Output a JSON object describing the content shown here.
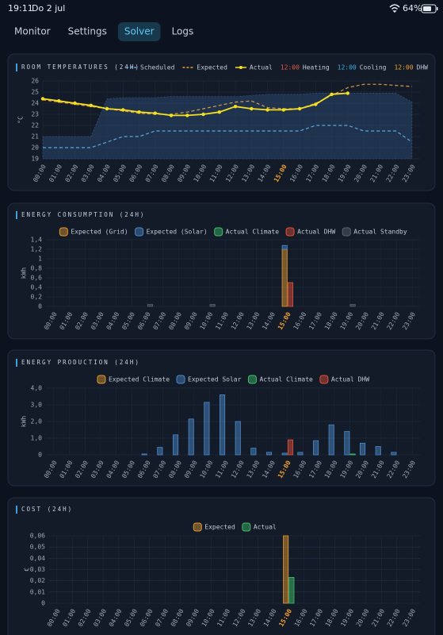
{
  "status_bar": {
    "time": "19:11",
    "date": "Do 2 jul",
    "battery": "64%"
  },
  "tabs": {
    "items": [
      "Monitor",
      "Settings",
      "Solver",
      "Logs"
    ],
    "active": 2
  },
  "chart_data": [
    {
      "type": "line",
      "title": "ROOM TEMPERATURES (24H)",
      "y_label": "°C",
      "categories": [
        "00:00",
        "01:00",
        "02:00",
        "03:00",
        "04:00",
        "05:00",
        "06:00",
        "07:00",
        "08:00",
        "09:00",
        "10:00",
        "11:00",
        "12:00",
        "13:00",
        "14:00",
        "15:00",
        "16:00",
        "17:00",
        "18:00",
        "19:00",
        "20:00",
        "21:00",
        "22:00",
        "23:00"
      ],
      "highlight_index": 15,
      "highlight_color": "#f0a030",
      "ylim": [
        19,
        26
      ],
      "yticks": [
        19,
        20,
        21,
        22,
        23,
        24,
        25,
        26
      ],
      "grid": true,
      "band": {
        "color": "#29476f",
        "upper": [
          21,
          21,
          21,
          21,
          24.4,
          24.5,
          24.5,
          24.5,
          24.6,
          24.6,
          24.6,
          24.6,
          24.6,
          24.7,
          24.8,
          24.8,
          24.8,
          24.9,
          24.9,
          24.9,
          24.9,
          24.9,
          24.9,
          24.1
        ],
        "lower": [
          19,
          19,
          19,
          19,
          19,
          19,
          19,
          19,
          19,
          19,
          19,
          19,
          19,
          19,
          19,
          19,
          19,
          19,
          19,
          19,
          19,
          19,
          19,
          19
        ]
      },
      "series": [
        {
          "name": "Scheduled",
          "color": "#5aa8e0",
          "style": "dashed",
          "values": [
            20,
            20,
            20,
            20,
            20.5,
            21,
            21,
            21.5,
            21.5,
            21.5,
            21.5,
            21.5,
            21.5,
            21.5,
            21.5,
            21.5,
            21.5,
            22,
            22,
            22,
            21.5,
            21.5,
            21.5,
            20.5
          ]
        },
        {
          "name": "Expected",
          "color": "#e09a40",
          "style": "dashed",
          "values": [
            24.3,
            24.1,
            23.9,
            23.7,
            23.5,
            23.3,
            23.1,
            23,
            23,
            23.2,
            23.5,
            23.8,
            24.1,
            24.2,
            23.6,
            23.5,
            23.5,
            24,
            24.7,
            25.4,
            25.7,
            25.7,
            25.6,
            25.5
          ]
        },
        {
          "name": "Actual",
          "color": "#f5e020",
          "style": "solid",
          "markers": true,
          "values": [
            24.4,
            24.2,
            24,
            23.8,
            23.5,
            23.4,
            23.2,
            23.1,
            22.9,
            22.9,
            23,
            23.2,
            23.7,
            23.5,
            23.4,
            23.4,
            23.5,
            23.9,
            24.8,
            24.9,
            null,
            null,
            null,
            null
          ]
        }
      ],
      "legend_extra": [
        {
          "time": "12:00",
          "label": "Heating",
          "color": "#e85a48"
        },
        {
          "time": "12:00",
          "label": "Cooling",
          "color": "#3ab0e0"
        },
        {
          "time": "12:00",
          "label": "DHW",
          "color": "#f0a030"
        }
      ]
    },
    {
      "type": "bar",
      "title": "ENERGY CONSUMPTION (24H)",
      "y_label": "kWh",
      "categories": [
        "00:00",
        "01:00",
        "02:00",
        "03:00",
        "04:00",
        "05:00",
        "06:00",
        "07:00",
        "08:00",
        "09:00",
        "10:00",
        "11:00",
        "12:00",
        "13:00",
        "14:00",
        "15:00",
        "16:00",
        "17:00",
        "18:00",
        "19:00",
        "20:00",
        "21:00",
        "22:00",
        "23:00"
      ],
      "highlight_index": 15,
      "highlight_color": "#f0a030",
      "ylim": [
        0,
        1.4
      ],
      "yticks": [
        0,
        {
          "value": 0.2,
          "label": "0,2"
        },
        {
          "value": 0.4,
          "label": "0,4"
        },
        {
          "value": 0.6,
          "label": "0,6"
        },
        {
          "value": 0.8,
          "label": "0,8"
        },
        {
          "value": 1,
          "label": "1"
        },
        {
          "value": 1.2,
          "label": "1,2"
        },
        {
          "value": 1.4,
          "label": "1,4"
        }
      ],
      "grid": true,
      "series": [
        {
          "name": "Expected (Grid)",
          "color": "#e0982f",
          "stack": "expected",
          "values": [
            0,
            0,
            0,
            0,
            0,
            0,
            0,
            0,
            0,
            0,
            0,
            0,
            0,
            0,
            0,
            1.2,
            0,
            0,
            0,
            0,
            0,
            0,
            0,
            0
          ]
        },
        {
          "name": "Expected (Solar)",
          "color": "#4a88c8",
          "stack": "expected",
          "values": [
            0,
            0,
            0,
            0,
            0,
            0,
            0,
            0,
            0,
            0,
            0,
            0,
            0,
            0,
            0,
            0.08,
            0,
            0,
            0,
            0,
            0,
            0,
            0,
            0
          ]
        },
        {
          "name": "Actual Climate",
          "color": "#3fbf6a",
          "stack": "actual",
          "values": [
            0,
            0,
            0,
            0,
            0,
            0,
            0,
            0,
            0,
            0,
            0,
            0,
            0,
            0,
            0,
            0,
            0,
            0,
            0,
            0,
            0,
            0,
            0,
            0
          ]
        },
        {
          "name": "Actual DHW",
          "color": "#e0503a",
          "stack": "actual",
          "values": [
            0,
            0,
            0,
            0,
            0,
            0,
            0,
            0,
            0,
            0,
            0,
            0,
            0,
            0,
            0,
            0.5,
            0,
            0,
            0,
            0,
            0,
            0,
            0,
            0
          ]
        },
        {
          "name": "Actual Standby",
          "color": "#5a6270",
          "stack": "actual",
          "values": [
            0,
            0,
            0,
            0,
            0,
            0,
            0.04,
            0,
            0,
            0,
            0.04,
            0,
            0,
            0,
            0,
            0,
            0,
            0,
            0,
            0.04,
            0,
            0,
            0,
            0
          ]
        }
      ]
    },
    {
      "type": "bar",
      "title": "ENERGY PRODUCTION (24H)",
      "y_label": "kWh",
      "categories": [
        "00:00",
        "01:00",
        "02:00",
        "03:00",
        "04:00",
        "05:00",
        "06:00",
        "07:00",
        "08:00",
        "09:00",
        "10:00",
        "11:00",
        "12:00",
        "13:00",
        "14:00",
        "15:00",
        "16:00",
        "17:00",
        "18:00",
        "19:00",
        "20:00",
        "21:00",
        "22:00",
        "23:00"
      ],
      "highlight_index": 15,
      "highlight_color": "#f0a030",
      "ylim": [
        0,
        4
      ],
      "yticks": [
        0,
        {
          "value": 1,
          "label": "1,0"
        },
        {
          "value": 2,
          "label": "2,0"
        },
        {
          "value": 3,
          "label": "3,0"
        },
        {
          "value": 4,
          "label": "4,0"
        }
      ],
      "grid": true,
      "series": [
        {
          "name": "Expected Climate",
          "color": "#e0982f",
          "stack": "expected",
          "values": [
            0,
            0,
            0,
            0,
            0,
            0,
            0,
            0,
            0,
            0,
            0,
            0,
            0,
            0,
            0,
            0,
            0,
            0,
            0,
            0,
            0,
            0,
            0,
            0
          ]
        },
        {
          "name": "Expected Solar",
          "color": "#4a88c8",
          "stack": "expected",
          "values": [
            0,
            0,
            0,
            0,
            0,
            0,
            0.05,
            0.45,
            1.2,
            2.15,
            3.15,
            3.6,
            2,
            0.4,
            0.15,
            0.1,
            0.15,
            0.85,
            1.8,
            1.4,
            0.7,
            0.5,
            0.15,
            0
          ]
        },
        {
          "name": "Actual Climate",
          "color": "#3fbf6a",
          "stack": "actual",
          "values": [
            0,
            0,
            0,
            0,
            0,
            0,
            0,
            0,
            0,
            0,
            0,
            0,
            0,
            0,
            0,
            0,
            0,
            0,
            0,
            0.05,
            0,
            0,
            0,
            0
          ]
        },
        {
          "name": "Actual DHW",
          "color": "#e0503a",
          "stack": "actual",
          "values": [
            0,
            0,
            0,
            0,
            0,
            0,
            0,
            0,
            0,
            0,
            0,
            0,
            0,
            0,
            0,
            0.9,
            0,
            0,
            0,
            0,
            0,
            0,
            0,
            0
          ]
        }
      ]
    },
    {
      "type": "bar",
      "title": "COST (24H)",
      "y_label": "€",
      "categories": [
        "00:00",
        "01:00",
        "02:00",
        "03:00",
        "04:00",
        "05:00",
        "06:00",
        "07:00",
        "08:00",
        "09:00",
        "10:00",
        "11:00",
        "12:00",
        "13:00",
        "14:00",
        "15:00",
        "16:00",
        "17:00",
        "18:00",
        "19:00",
        "20:00",
        "21:00",
        "22:00",
        "23:00"
      ],
      "highlight_index": 15,
      "highlight_color": "#f0a030",
      "ylim": [
        0,
        0.06
      ],
      "yticks": [
        0,
        {
          "value": 0.01,
          "label": "0,01"
        },
        {
          "value": 0.02,
          "label": "0,02"
        },
        {
          "value": 0.03,
          "label": "0,03"
        },
        {
          "value": 0.04,
          "label": "0,04"
        },
        {
          "value": 0.05,
          "label": "0,05"
        },
        {
          "value": 0.06,
          "label": "0,06"
        }
      ],
      "grid": true,
      "series": [
        {
          "name": "Expected",
          "color": "#e0982f",
          "stack": "expected",
          "values": [
            0,
            0,
            0,
            0,
            0,
            0,
            0,
            0,
            0,
            0,
            0,
            0,
            0,
            0,
            0,
            0.06,
            0,
            0,
            0,
            0,
            0,
            0,
            0,
            0
          ]
        },
        {
          "name": "Actual",
          "color": "#3fbf6a",
          "stack": "actual",
          "values": [
            0,
            0,
            0,
            0,
            0,
            0,
            0,
            0,
            0,
            0,
            0,
            0,
            0,
            0,
            0,
            0.023,
            0,
            0,
            0,
            0,
            0,
            0,
            0,
            0
          ]
        }
      ]
    }
  ]
}
